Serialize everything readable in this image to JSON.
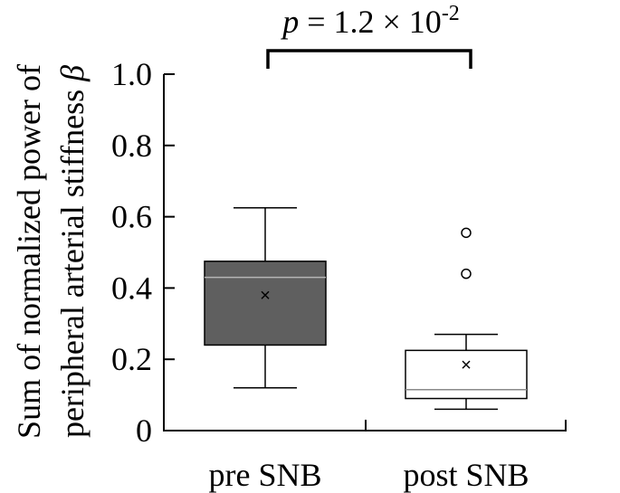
{
  "chart_data": {
    "type": "box",
    "ylabel_line1": "Sum of normalized power of",
    "ylabel_line2_prefix": "peripheral arterial stiffness ",
    "ylabel_symbol": "β",
    "categories": [
      "pre SNB",
      "post SNB"
    ],
    "ylim": [
      0,
      1.0
    ],
    "yticks": [
      {
        "value": 0,
        "label": "0"
      },
      {
        "value": 0.2,
        "label": "0.2"
      },
      {
        "value": 0.4,
        "label": "0.4"
      },
      {
        "value": 0.6,
        "label": "0.6"
      },
      {
        "value": 0.8,
        "label": "0.8"
      },
      {
        "value": 1.0,
        "label": "1.0"
      }
    ],
    "boxes": [
      {
        "category": "pre SNB",
        "whisker_low": 0.12,
        "q1": 0.24,
        "median": 0.43,
        "q3": 0.475,
        "whisker_high": 0.625,
        "mean": 0.38,
        "outliers": [],
        "fill": "#5f5f5f",
        "median_color": "#b5b5b5"
      },
      {
        "category": "post SNB",
        "whisker_low": 0.06,
        "q1": 0.09,
        "median": 0.115,
        "q3": 0.225,
        "whisker_high": 0.27,
        "mean": 0.185,
        "outliers": [
          0.555,
          0.44
        ],
        "fill": "#ffffff",
        "median_color": "#8a8a8a"
      }
    ],
    "significance": {
      "p_symbol": "p",
      "equals": " = ",
      "mantissa": "1.2 × 10",
      "exponent": "-2"
    },
    "grid": false,
    "legend": "none"
  }
}
